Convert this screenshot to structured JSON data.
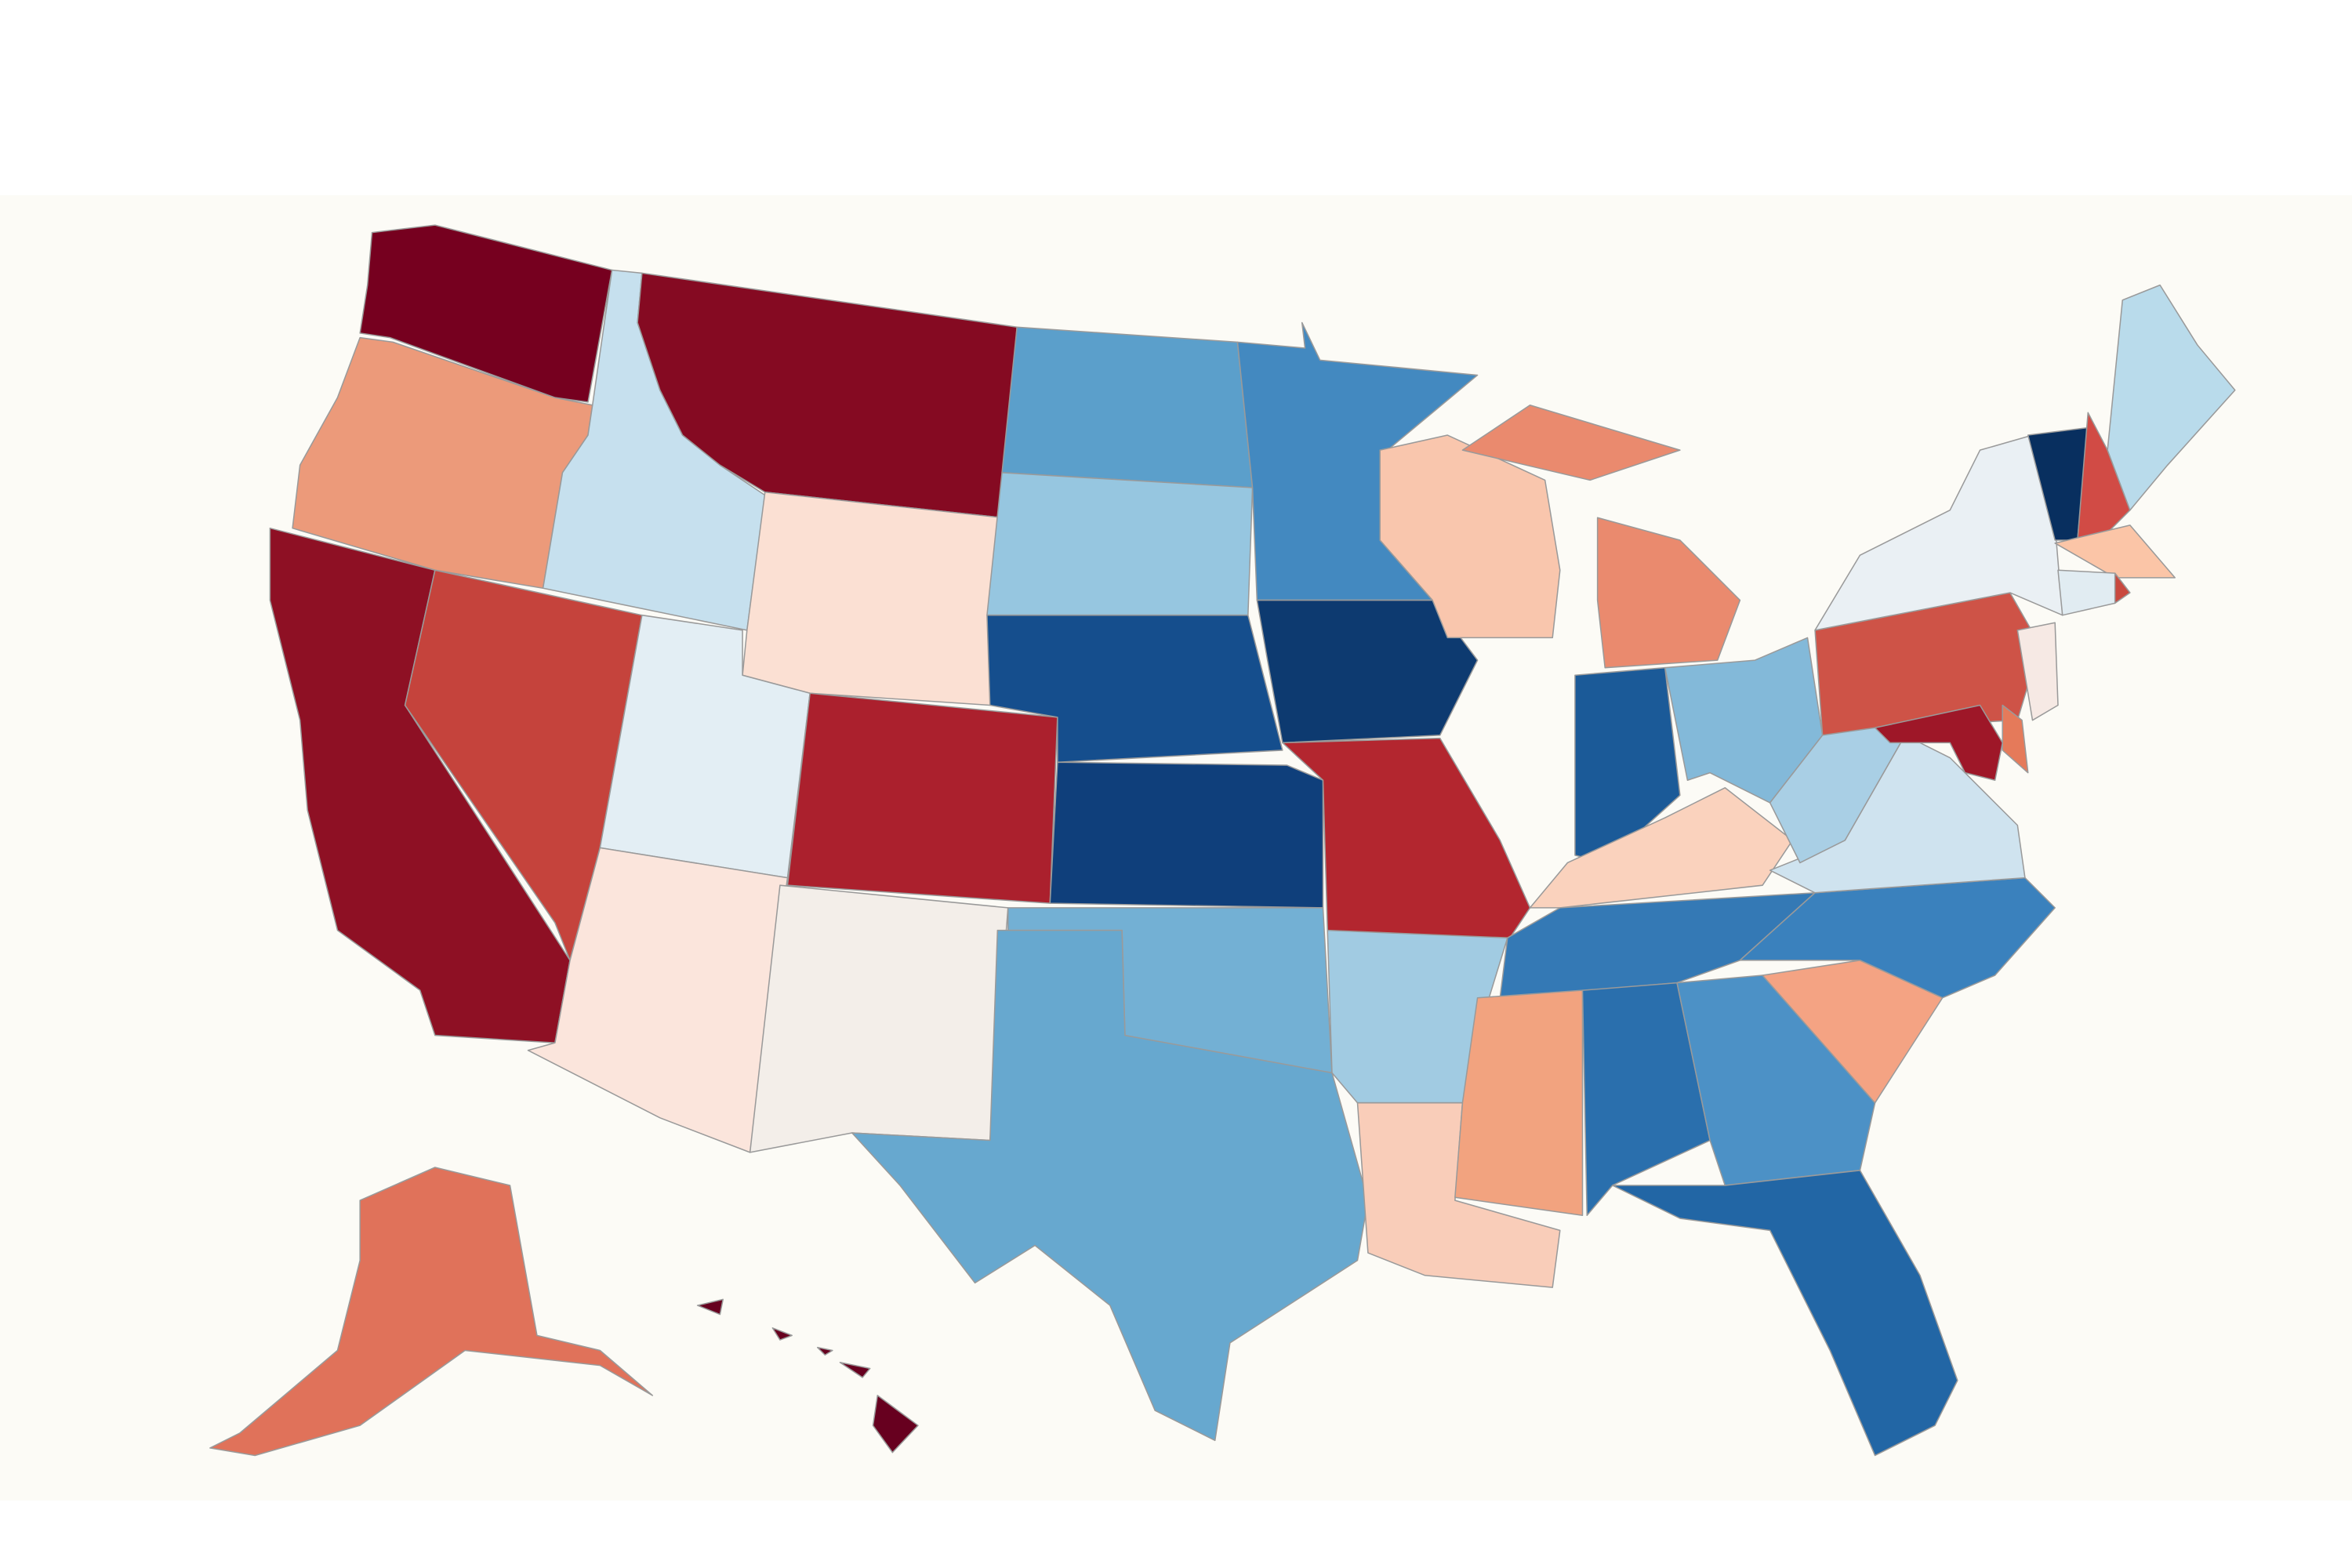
{
  "map": {
    "background": "#fcfbf6",
    "fills": [
      "#76001f",
      "#ec9a7a",
      "#c6e0ee",
      "#850a22",
      "#fbe0d3",
      "#8e1024",
      "#c5433c",
      "#e3eef4",
      "#fbe5dc",
      "#ab202d",
      "#f3eee9",
      "#5b9fcb",
      "#96c6e0",
      "#154e8d",
      "#0f3f7b",
      "#73b0d4",
      "#67a8cf",
      "#4389c0",
      "#0d3a70",
      "#b3262f",
      "#a1cbe2",
      "#f9cdb9",
      "#f9c6ad",
      "#ea8a6e",
      "#1b5a98",
      "#83b9d9",
      "#fad2bd",
      "#3479b5",
      "#f2a37f",
      "#2a6fad",
      "#4c91c6",
      "#2266a5",
      "#f4a383",
      "#3a81bd",
      "#cfe3ef",
      "#a9cfe5",
      "#ce5347",
      "#9e1728",
      "#eaf0f4",
      "#f6e9e4",
      "#082f5f",
      "#d14b45",
      "#b9dbeb",
      "#fbc5a7",
      "#e1ecf2",
      "#c9493f",
      "#e0725a",
      "#67001f",
      "#e57a5a"
    ]
  }
}
